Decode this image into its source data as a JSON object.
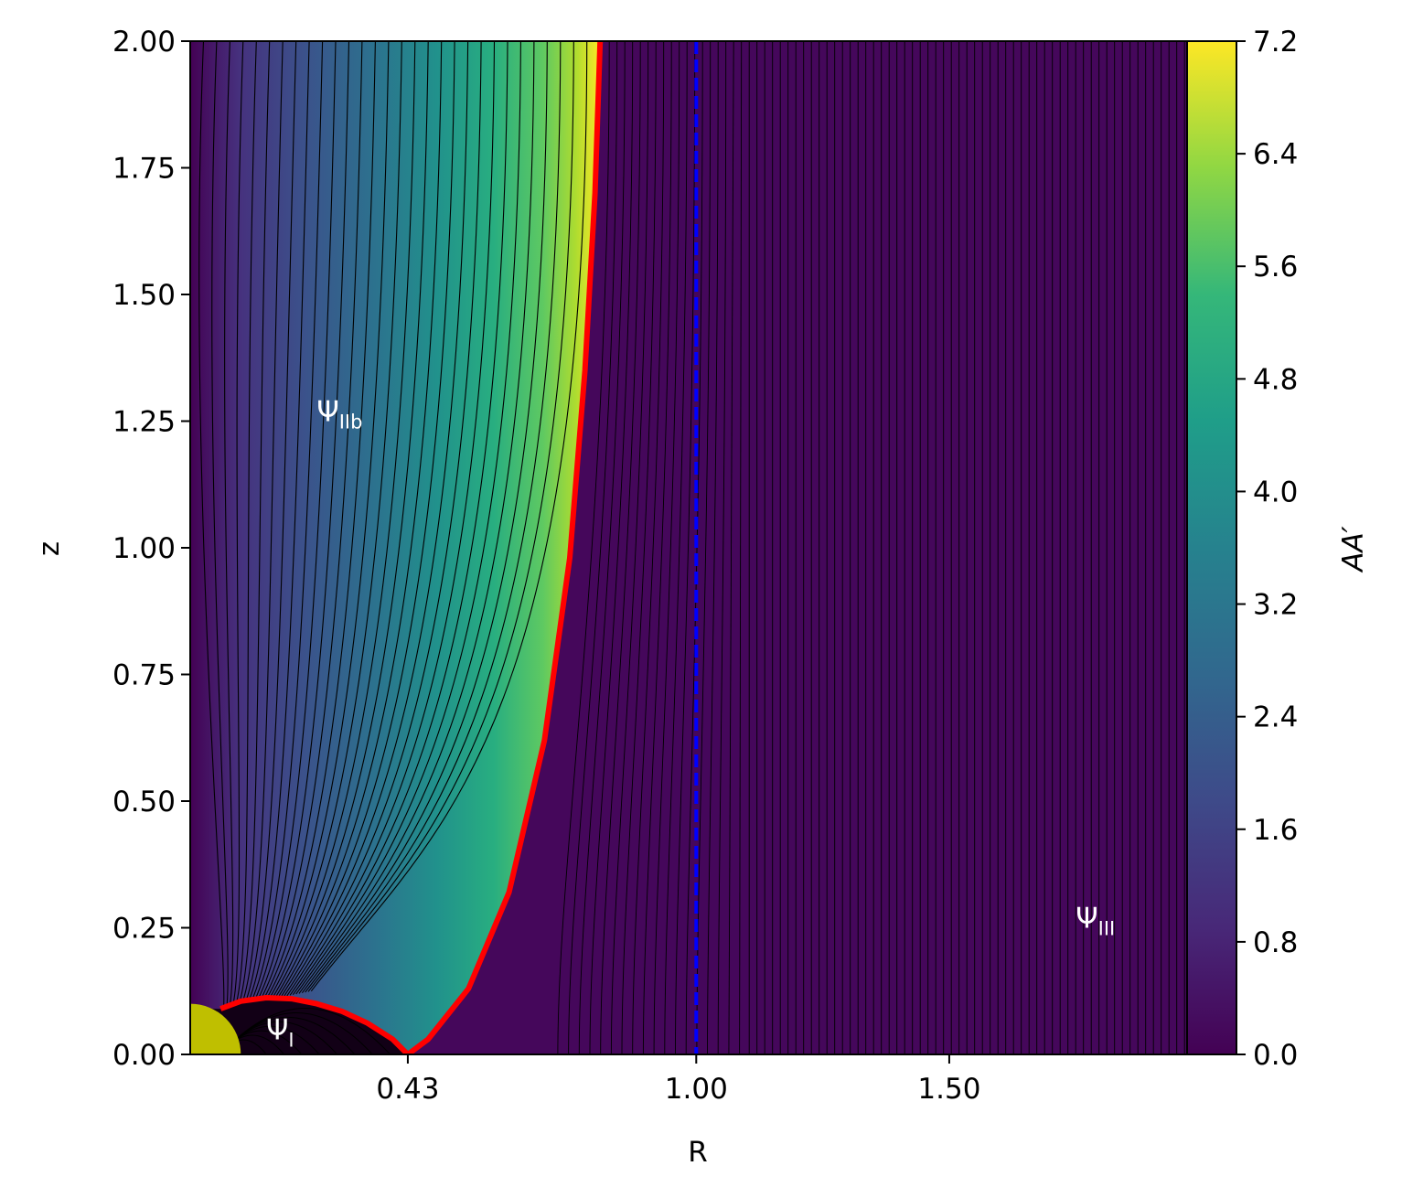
{
  "chart_data": {
    "type": "heatmap",
    "xlabel": "R",
    "ylabel": "z",
    "xlim": [
      0.0,
      1.97
    ],
    "ylim": [
      0.0,
      2.0
    ],
    "x_ticks": [
      {
        "value": 0.43,
        "label": "0.43"
      },
      {
        "value": 1.0,
        "label": "1.00"
      },
      {
        "value": 1.5,
        "label": "1.50"
      }
    ],
    "y_ticks": [
      {
        "value": 0.0,
        "label": "0.00"
      },
      {
        "value": 0.25,
        "label": "0.25"
      },
      {
        "value": 0.5,
        "label": "0.50"
      },
      {
        "value": 0.75,
        "label": "0.75"
      },
      {
        "value": 1.0,
        "label": "1.00"
      },
      {
        "value": 1.25,
        "label": "1.25"
      },
      {
        "value": 1.5,
        "label": "1.50"
      },
      {
        "value": 1.75,
        "label": "1.75"
      },
      {
        "value": 2.0,
        "label": "2.00"
      }
    ],
    "colorbar": {
      "label": "AA′",
      "range": [
        0.0,
        7.2
      ],
      "colormap": "viridis",
      "ticks": [
        {
          "value": 0.0,
          "label": "0.0"
        },
        {
          "value": 0.8,
          "label": "0.8"
        },
        {
          "value": 1.6,
          "label": "1.6"
        },
        {
          "value": 2.4,
          "label": "2.4"
        },
        {
          "value": 3.2,
          "label": "3.2"
        },
        {
          "value": 4.0,
          "label": "4.0"
        },
        {
          "value": 4.8,
          "label": "4.8"
        },
        {
          "value": 5.6,
          "label": "5.6"
        },
        {
          "value": 6.4,
          "label": "6.4"
        },
        {
          "value": 7.2,
          "label": "7.2"
        }
      ]
    },
    "separatrix": {
      "color": "#ff0000",
      "points": [
        [
          0.06,
          0.09
        ],
        [
          0.1,
          0.105
        ],
        [
          0.15,
          0.112
        ],
        [
          0.2,
          0.11
        ],
        [
          0.25,
          0.1
        ],
        [
          0.3,
          0.085
        ],
        [
          0.35,
          0.062
        ],
        [
          0.4,
          0.03
        ],
        [
          0.43,
          0.0
        ],
        [
          0.47,
          0.03
        ],
        [
          0.55,
          0.13
        ],
        [
          0.63,
          0.32
        ],
        [
          0.7,
          0.62
        ],
        [
          0.75,
          0.98
        ],
        [
          0.78,
          1.35
        ],
        [
          0.8,
          1.7
        ],
        [
          0.81,
          2.0
        ]
      ]
    },
    "light_cylinder": {
      "x": 1.0,
      "color": "#0000ff",
      "style": "dashed"
    },
    "star": {
      "radius": 0.1,
      "color": "#bfbf00"
    },
    "annotations": [
      {
        "base": "Ψ",
        "sub": "IIb",
        "x": 0.25,
        "z": 1.25
      },
      {
        "base": "Ψ",
        "sub": "I",
        "x": 0.15,
        "z": 0.03
      },
      {
        "base": "Ψ",
        "sub": "III",
        "x": 1.75,
        "z": 0.25
      }
    ],
    "grid": false
  }
}
